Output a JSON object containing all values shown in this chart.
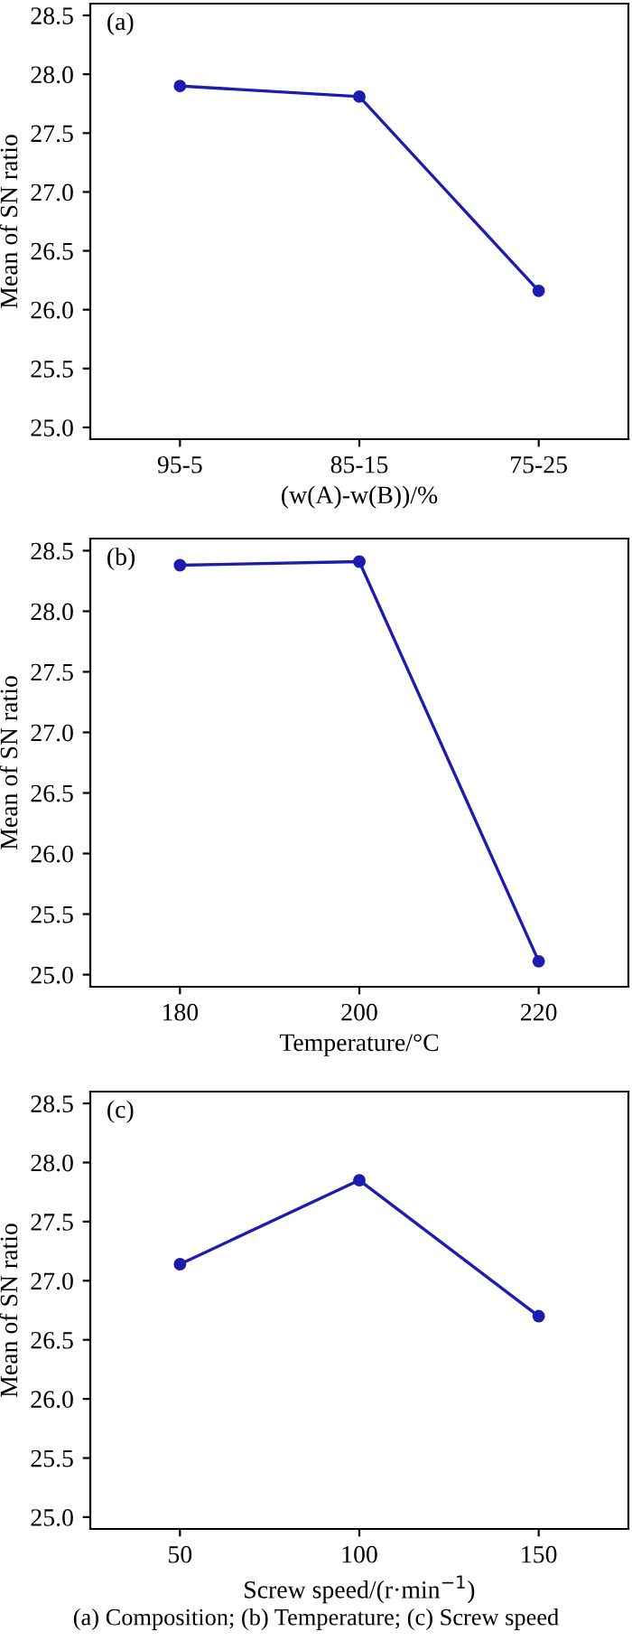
{
  "chart_data": [
    {
      "type": "line",
      "title": "(a)",
      "xlabel": "(w(A)-w(B))/%",
      "ylabel": "Mean of SN ratio",
      "categories": [
        "95-5",
        "85-15",
        "75-25"
      ],
      "series": [
        {
          "color": "#1c1cb0",
          "values": [
            27.9,
            27.81,
            26.16
          ]
        }
      ],
      "ylim": [
        24.9,
        28.6
      ],
      "yticks": [
        {
          "value": 25,
          "label": "25.0"
        },
        25.5,
        {
          "value": 26,
          "label": "26.0"
        },
        26.5,
        {
          "value": 27,
          "label": "27.0"
        },
        27.5,
        {
          "value": 28,
          "label": "28.0"
        },
        28.5
      ],
      "marker": "circle",
      "grid": false,
      "legend": false
    },
    {
      "type": "line",
      "title": "(b)",
      "xlabel": "Temperature/°C",
      "ylabel": "Mean of SN ratio",
      "x": [
        180,
        200,
        220
      ],
      "series": [
        {
          "color": "#1c1cb0",
          "values": [
            28.38,
            28.41,
            25.11
          ]
        }
      ],
      "xlim": [
        170,
        230
      ],
      "xticks": [
        180,
        200,
        220
      ],
      "ylim": [
        24.9,
        28.6
      ],
      "yticks": [
        {
          "value": 25,
          "label": "25.0"
        },
        25.5,
        {
          "value": 26,
          "label": "26.0"
        },
        26.5,
        {
          "value": 27,
          "label": "27.0"
        },
        27.5,
        {
          "value": 28,
          "label": "28.0"
        },
        28.5
      ],
      "marker": "circle",
      "grid": false,
      "legend": false
    },
    {
      "type": "line",
      "title": "(c)",
      "xlabel": "Screw speed/(r·min$^{−1}$)",
      "ylabel": "Mean of SN ratio",
      "x": [
        50,
        100,
        150
      ],
      "series": [
        {
          "color": "#1c1cb0",
          "values": [
            27.14,
            27.85,
            26.7
          ]
        }
      ],
      "xlim": [
        25,
        175
      ],
      "xticks": [
        50,
        100,
        150
      ],
      "ylim": [
        24.9,
        28.6
      ],
      "yticks": [
        {
          "value": 25,
          "label": "25.0"
        },
        25.5,
        {
          "value": 26,
          "label": "26.0"
        },
        26.5,
        {
          "value": 27,
          "label": "27.0"
        },
        27.5,
        {
          "value": 28,
          "label": "28.0"
        },
        28.5
      ],
      "marker": "circle",
      "grid": false,
      "legend": false,
      "annotations": [
        "(a) Composition; (b) Temperature; (c) Screw speed"
      ]
    }
  ]
}
